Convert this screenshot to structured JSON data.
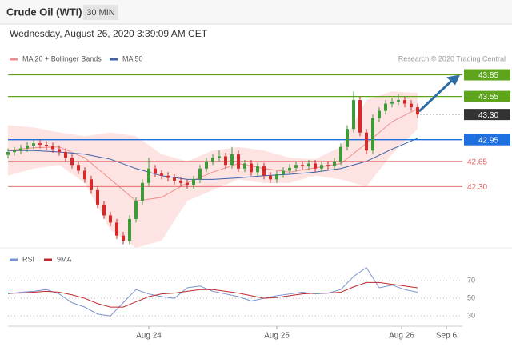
{
  "header": {
    "symbol": "Crude Oil (WTI)",
    "interval": "30 MIN",
    "timestamp": "Wednesday, August 26, 2020 3:39:09 AM CET"
  },
  "chart_data": [
    {
      "type": "candlestick",
      "source": "Research © 2020 Trading Central",
      "up_color": "#3f9a3a",
      "down_color": "#d42a2a",
      "x": [
        0,
        1,
        2,
        3,
        4,
        5,
        6,
        7,
        8,
        9,
        10,
        11,
        12,
        13,
        14,
        15,
        16,
        17,
        18,
        19,
        20,
        21,
        22,
        23,
        24,
        25,
        26,
        27,
        28,
        29,
        30,
        31,
        32,
        33,
        34,
        35,
        36,
        37,
        38,
        39,
        40,
        41,
        42,
        43,
        44,
        45,
        46,
        47,
        48,
        49,
        50,
        51,
        52,
        53,
        54,
        55,
        56,
        57,
        58,
        59,
        60,
        61,
        62,
        63,
        64
      ],
      "open": [
        42.74,
        42.78,
        42.8,
        42.83,
        42.87,
        42.9,
        42.88,
        42.86,
        42.82,
        42.78,
        42.7,
        42.6,
        42.52,
        42.4,
        42.25,
        42.05,
        41.9,
        41.8,
        41.62,
        41.55,
        41.85,
        42.1,
        42.35,
        42.55,
        42.48,
        42.45,
        42.42,
        42.38,
        42.35,
        42.32,
        42.4,
        42.55,
        42.65,
        42.7,
        42.72,
        42.6,
        42.75,
        42.55,
        42.62,
        42.5,
        42.58,
        42.45,
        42.4,
        42.47,
        42.52,
        42.56,
        42.6,
        42.58,
        42.62,
        42.55,
        42.6,
        42.58,
        42.65,
        42.85,
        43.1,
        43.5,
        43.05,
        42.8,
        43.25,
        43.35,
        43.45,
        43.48,
        43.5,
        43.45,
        43.4
      ],
      "high": [
        42.83,
        42.85,
        42.88,
        42.92,
        42.95,
        42.95,
        42.93,
        42.91,
        42.87,
        42.83,
        42.75,
        42.65,
        42.57,
        42.45,
        42.3,
        42.1,
        41.95,
        41.85,
        41.67,
        41.9,
        42.15,
        42.4,
        42.7,
        42.6,
        42.53,
        42.5,
        42.47,
        42.43,
        42.4,
        42.45,
        42.6,
        42.7,
        42.75,
        42.8,
        42.77,
        42.85,
        42.8,
        42.67,
        42.67,
        42.63,
        42.63,
        42.5,
        42.52,
        42.57,
        42.61,
        42.65,
        42.65,
        42.67,
        42.67,
        42.65,
        42.65,
        42.7,
        42.9,
        43.15,
        43.62,
        43.55,
        43.1,
        43.3,
        43.4,
        43.5,
        43.53,
        43.58,
        43.55,
        43.5,
        43.45
      ],
      "low": [
        42.69,
        42.73,
        42.75,
        42.78,
        42.82,
        42.83,
        42.81,
        42.77,
        42.73,
        42.65,
        42.55,
        42.47,
        42.35,
        42.2,
        42.0,
        41.85,
        41.75,
        41.57,
        41.5,
        41.5,
        41.8,
        42.05,
        42.3,
        42.43,
        42.4,
        42.37,
        42.33,
        42.3,
        42.27,
        42.27,
        42.35,
        42.5,
        42.6,
        42.65,
        42.55,
        42.55,
        42.5,
        42.5,
        42.45,
        42.45,
        42.4,
        42.35,
        42.35,
        42.42,
        42.47,
        42.51,
        42.53,
        42.53,
        42.5,
        42.5,
        42.53,
        42.53,
        42.6,
        42.8,
        43.05,
        43.0,
        42.75,
        42.75,
        43.2,
        43.3,
        43.4,
        43.43,
        43.4,
        43.35,
        43.25
      ],
      "close": [
        42.78,
        42.8,
        42.83,
        42.87,
        42.9,
        42.88,
        42.86,
        42.82,
        42.78,
        42.7,
        42.6,
        42.52,
        42.4,
        42.25,
        42.05,
        41.9,
        41.8,
        41.62,
        41.55,
        41.85,
        42.1,
        42.35,
        42.55,
        42.48,
        42.45,
        42.42,
        42.38,
        42.35,
        42.32,
        42.4,
        42.55,
        42.65,
        42.7,
        42.72,
        42.6,
        42.75,
        42.55,
        42.62,
        42.5,
        42.58,
        42.45,
        42.4,
        42.47,
        42.52,
        42.56,
        42.6,
        42.58,
        42.62,
        42.55,
        42.6,
        42.58,
        42.65,
        42.85,
        43.1,
        43.5,
        43.05,
        42.8,
        43.25,
        43.35,
        43.45,
        43.48,
        43.5,
        43.45,
        43.4,
        43.3
      ],
      "overlays": [
        {
          "name": "MA 20 + Bollinger Bands",
          "color": "#ef8f8f",
          "band_color": "#fde3e1",
          "x": [
            0,
            4,
            8,
            12,
            16,
            20,
            24,
            28,
            32,
            36,
            40,
            44,
            48,
            52,
            56,
            60,
            64
          ],
          "values": [
            42.8,
            42.84,
            42.85,
            42.7,
            42.4,
            42.1,
            42.15,
            42.35,
            42.5,
            42.62,
            42.55,
            42.5,
            42.56,
            42.62,
            42.9,
            43.2,
            43.38
          ],
          "upper": [
            43.15,
            43.12,
            43.05,
            43.0,
            43.05,
            43.0,
            42.75,
            42.65,
            42.8,
            42.85,
            42.8,
            42.7,
            42.68,
            42.85,
            43.5,
            43.62,
            43.6
          ],
          "lower": [
            42.45,
            42.55,
            42.6,
            42.35,
            41.7,
            41.45,
            41.55,
            42.1,
            42.25,
            42.4,
            42.35,
            42.35,
            42.45,
            42.4,
            42.3,
            42.75,
            43.1
          ]
        },
        {
          "name": "MA 50",
          "color": "#3c64a8",
          "x": [
            0,
            4,
            8,
            12,
            16,
            20,
            24,
            28,
            32,
            36,
            40,
            44,
            48,
            52,
            56,
            60,
            64
          ],
          "values": [
            42.8,
            42.8,
            42.78,
            42.75,
            42.68,
            42.55,
            42.45,
            42.4,
            42.4,
            42.42,
            42.45,
            42.47,
            42.5,
            42.55,
            42.65,
            42.82,
            42.97
          ]
        }
      ],
      "levels": [
        {
          "value": 43.85,
          "color": "#5ea51d",
          "style": "box",
          "line": "solid"
        },
        {
          "value": 43.55,
          "color": "#5ea51d",
          "style": "box",
          "line": "solid"
        },
        {
          "value": 43.3,
          "label": "43.30",
          "color": "#333333",
          "style": "box",
          "line": "dotted"
        },
        {
          "value": 42.95,
          "color": "#1e6fe0",
          "style": "box",
          "line": "solid"
        },
        {
          "value": 42.65,
          "color": "#e06060",
          "style": "text",
          "line": "solid"
        },
        {
          "value": 42.3,
          "label": "42.30",
          "color": "#e06060",
          "style": "text",
          "line": "solid"
        }
      ],
      "xlim": [
        0,
        70
      ],
      "ylim": [
        41.45,
        44.0
      ]
    },
    {
      "type": "line",
      "series": [
        {
          "name": "RSI",
          "color": "#7b93d0",
          "x": [
            0,
            2,
            4,
            6,
            8,
            10,
            12,
            14,
            16,
            18,
            20,
            22,
            24,
            26,
            28,
            30,
            32,
            34,
            36,
            38,
            40,
            42,
            44,
            46,
            48,
            50,
            52,
            54,
            56,
            58,
            60,
            62,
            64
          ],
          "values": [
            55,
            57,
            58,
            60,
            55,
            45,
            40,
            32,
            30,
            45,
            60,
            55,
            52,
            50,
            62,
            64,
            58,
            55,
            52,
            47,
            50,
            53,
            55,
            57,
            55,
            56,
            60,
            75,
            85,
            62,
            65,
            60,
            57
          ]
        },
        {
          "name": "9MA",
          "color": "#c0282d",
          "x": [
            0,
            2,
            4,
            6,
            8,
            10,
            12,
            14,
            16,
            18,
            20,
            22,
            24,
            26,
            28,
            30,
            32,
            34,
            36,
            38,
            40,
            42,
            44,
            46,
            48,
            50,
            52,
            54,
            56,
            58,
            60,
            62,
            64
          ],
          "values": [
            56,
            56,
            57,
            58,
            57,
            54,
            50,
            44,
            40,
            40,
            46,
            52,
            55,
            56,
            58,
            60,
            60,
            58,
            56,
            53,
            50,
            51,
            53,
            55,
            56,
            56,
            57,
            63,
            68,
            68,
            66,
            64,
            62
          ]
        }
      ],
      "xlim": [
        0,
        70
      ],
      "ylim": [
        21,
        103
      ],
      "yticks": [
        30,
        50,
        70
      ],
      "grid": true,
      "xticks": [
        {
          "value": 22,
          "label": "Aug 24"
        },
        {
          "value": 42,
          "label": "Aug 25"
        },
        {
          "value": 61.5,
          "label": "Aug 26"
        },
        {
          "value": 68.5,
          "label": "Sep 6"
        }
      ]
    }
  ]
}
